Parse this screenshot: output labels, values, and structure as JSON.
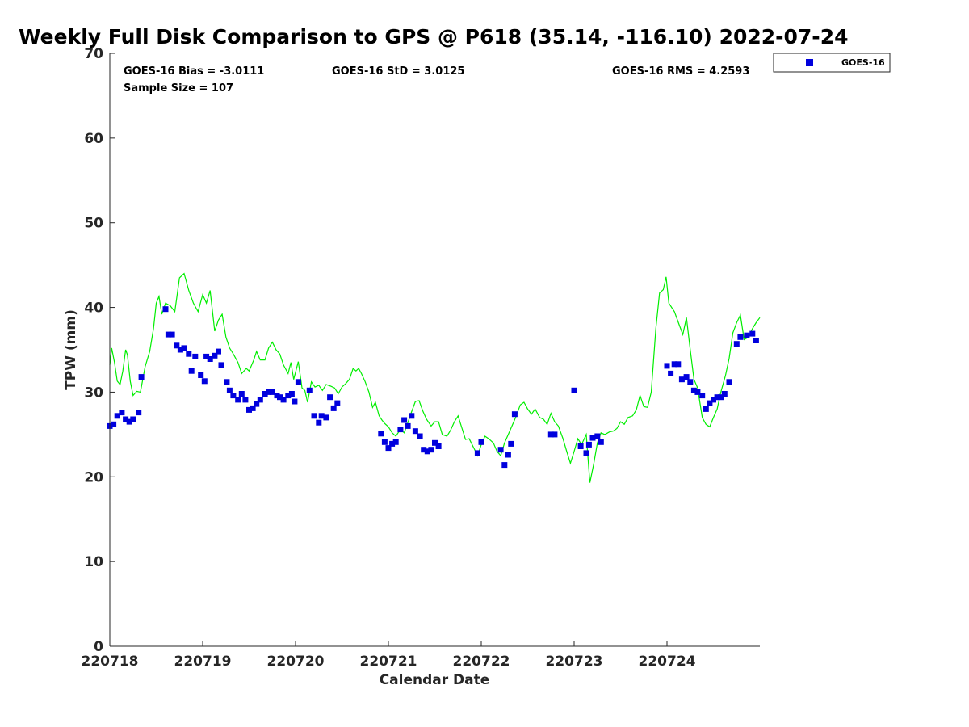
{
  "chart_data": {
    "type": "scatter",
    "title": "Weekly Full Disk Comparison to GPS @ P618 (35.14, -116.10) 2022-07-24",
    "xlabel": "Calendar Date",
    "ylabel": "TPW (mm)",
    "ylim": [
      0,
      70
    ],
    "xlim": [
      0,
      7
    ],
    "yticks": [
      0,
      10,
      20,
      30,
      40,
      50,
      60,
      70
    ],
    "xticks": [
      {
        "value": 0,
        "label": "220718"
      },
      {
        "value": 1,
        "label": "220719"
      },
      {
        "value": 2,
        "label": "220720"
      },
      {
        "value": 3,
        "label": "220721"
      },
      {
        "value": 4,
        "label": "220722"
      },
      {
        "value": 5,
        "label": "220723"
      },
      {
        "value": 6,
        "label": "220724"
      }
    ],
    "annotations": {
      "bias": "GOES-16 Bias = -3.0111",
      "std": "GOES-16 StD = 3.0125",
      "rms": "GOES-16 RMS = 4.2593",
      "sample": "Sample Size = 107"
    },
    "legend": {
      "position": "outside-top-right",
      "entries": [
        "GOES-16"
      ]
    },
    "colors": {
      "goes": "#0000dd",
      "gps": "#00ee00",
      "axis": "#262626"
    },
    "series": [
      {
        "name": "GOES-16",
        "marker": "square",
        "points": [
          [
            0.0,
            26.0
          ],
          [
            0.04,
            26.2
          ],
          [
            0.08,
            27.2
          ],
          [
            0.13,
            27.6
          ],
          [
            0.17,
            26.8
          ],
          [
            0.21,
            26.5
          ],
          [
            0.25,
            26.8
          ],
          [
            0.31,
            27.6
          ],
          [
            0.34,
            31.8
          ],
          [
            0.6,
            39.8
          ],
          [
            0.63,
            36.8
          ],
          [
            0.67,
            36.8
          ],
          [
            0.72,
            35.5
          ],
          [
            0.76,
            35.0
          ],
          [
            0.8,
            35.2
          ],
          [
            0.85,
            34.5
          ],
          [
            0.88,
            32.5
          ],
          [
            0.92,
            34.2
          ],
          [
            0.98,
            32.0
          ],
          [
            1.02,
            31.3
          ],
          [
            1.04,
            34.2
          ],
          [
            1.08,
            33.9
          ],
          [
            1.13,
            34.3
          ],
          [
            1.17,
            34.8
          ],
          [
            1.2,
            33.2
          ],
          [
            1.26,
            31.2
          ],
          [
            1.29,
            30.2
          ],
          [
            1.33,
            29.6
          ],
          [
            1.38,
            29.1
          ],
          [
            1.42,
            29.8
          ],
          [
            1.46,
            29.1
          ],
          [
            1.5,
            27.9
          ],
          [
            1.54,
            28.1
          ],
          [
            1.58,
            28.6
          ],
          [
            1.62,
            29.1
          ],
          [
            1.67,
            29.8
          ],
          [
            1.71,
            30.0
          ],
          [
            1.75,
            30.0
          ],
          [
            1.8,
            29.6
          ],
          [
            1.83,
            29.4
          ],
          [
            1.87,
            29.1
          ],
          [
            1.92,
            29.6
          ],
          [
            1.96,
            29.8
          ],
          [
            1.99,
            28.9
          ],
          [
            2.03,
            31.2
          ],
          [
            2.15,
            30.2
          ],
          [
            2.2,
            27.2
          ],
          [
            2.25,
            26.4
          ],
          [
            2.28,
            27.2
          ],
          [
            2.33,
            27.0
          ],
          [
            2.37,
            29.4
          ],
          [
            2.41,
            28.1
          ],
          [
            2.45,
            28.7
          ],
          [
            2.92,
            25.1
          ],
          [
            2.96,
            24.1
          ],
          [
            3.0,
            23.4
          ],
          [
            3.04,
            23.9
          ],
          [
            3.08,
            24.1
          ],
          [
            3.13,
            25.6
          ],
          [
            3.17,
            26.7
          ],
          [
            3.21,
            26.0
          ],
          [
            3.25,
            27.2
          ],
          [
            3.29,
            25.4
          ],
          [
            3.34,
            24.8
          ],
          [
            3.38,
            23.2
          ],
          [
            3.42,
            23.0
          ],
          [
            3.46,
            23.2
          ],
          [
            3.5,
            24.0
          ],
          [
            3.54,
            23.6
          ],
          [
            3.96,
            22.8
          ],
          [
            4.0,
            24.1
          ],
          [
            4.21,
            23.2
          ],
          [
            4.25,
            21.4
          ],
          [
            4.29,
            22.6
          ],
          [
            4.32,
            23.9
          ],
          [
            4.36,
            27.4
          ],
          [
            4.75,
            25.0
          ],
          [
            4.79,
            25.0
          ],
          [
            5.0,
            30.2
          ],
          [
            5.07,
            23.6
          ],
          [
            5.13,
            22.8
          ],
          [
            5.16,
            23.8
          ],
          [
            5.2,
            24.6
          ],
          [
            5.25,
            24.8
          ],
          [
            5.29,
            24.1
          ],
          [
            6.0,
            33.1
          ],
          [
            6.04,
            32.2
          ],
          [
            6.08,
            33.3
          ],
          [
            6.12,
            33.3
          ],
          [
            6.16,
            31.5
          ],
          [
            6.21,
            31.8
          ],
          [
            6.25,
            31.2
          ],
          [
            6.29,
            30.2
          ],
          [
            6.33,
            30.0
          ],
          [
            6.38,
            29.6
          ],
          [
            6.42,
            28.0
          ],
          [
            6.46,
            28.7
          ],
          [
            6.5,
            29.1
          ],
          [
            6.54,
            29.4
          ],
          [
            6.58,
            29.4
          ],
          [
            6.62,
            29.8
          ],
          [
            6.67,
            31.2
          ],
          [
            6.75,
            35.7
          ],
          [
            6.79,
            36.5
          ],
          [
            6.86,
            36.7
          ],
          [
            6.92,
            36.9
          ],
          [
            6.96,
            36.1
          ]
        ]
      },
      {
        "name": "",
        "marker": "line",
        "points": [
          [
            0.0,
            33.2
          ],
          [
            0.02,
            35.2
          ],
          [
            0.05,
            33.5
          ],
          [
            0.08,
            31.3
          ],
          [
            0.11,
            30.9
          ],
          [
            0.14,
            32.5
          ],
          [
            0.17,
            35.0
          ],
          [
            0.19,
            34.4
          ],
          [
            0.22,
            31.3
          ],
          [
            0.25,
            29.6
          ],
          [
            0.29,
            30.1
          ],
          [
            0.33,
            30.0
          ],
          [
            0.38,
            33.0
          ],
          [
            0.43,
            34.8
          ],
          [
            0.47,
            37.5
          ],
          [
            0.5,
            40.5
          ],
          [
            0.53,
            41.3
          ],
          [
            0.56,
            39.2
          ],
          [
            0.6,
            40.5
          ],
          [
            0.65,
            40.2
          ],
          [
            0.7,
            39.5
          ],
          [
            0.75,
            43.5
          ],
          [
            0.8,
            44.0
          ],
          [
            0.85,
            42.0
          ],
          [
            0.9,
            40.5
          ],
          [
            0.95,
            39.5
          ],
          [
            1.0,
            41.5
          ],
          [
            1.04,
            40.5
          ],
          [
            1.08,
            42.0
          ],
          [
            1.13,
            37.2
          ],
          [
            1.17,
            38.5
          ],
          [
            1.21,
            39.2
          ],
          [
            1.25,
            36.5
          ],
          [
            1.29,
            35.2
          ],
          [
            1.33,
            34.5
          ],
          [
            1.38,
            33.5
          ],
          [
            1.42,
            32.2
          ],
          [
            1.47,
            32.8
          ],
          [
            1.5,
            32.5
          ],
          [
            1.55,
            33.8
          ],
          [
            1.58,
            34.8
          ],
          [
            1.62,
            33.8
          ],
          [
            1.67,
            33.8
          ],
          [
            1.71,
            35.2
          ],
          [
            1.75,
            35.9
          ],
          [
            1.79,
            35.0
          ],
          [
            1.83,
            34.5
          ],
          [
            1.87,
            33.2
          ],
          [
            1.92,
            32.2
          ],
          [
            1.95,
            33.5
          ],
          [
            1.98,
            31.5
          ],
          [
            2.03,
            33.6
          ],
          [
            2.07,
            30.5
          ],
          [
            2.1,
            30.2
          ],
          [
            2.13,
            28.8
          ],
          [
            2.17,
            31.2
          ],
          [
            2.21,
            30.6
          ],
          [
            2.25,
            30.8
          ],
          [
            2.29,
            30.2
          ],
          [
            2.33,
            30.9
          ],
          [
            2.38,
            30.7
          ],
          [
            2.42,
            30.5
          ],
          [
            2.46,
            29.8
          ],
          [
            2.5,
            30.6
          ],
          [
            2.54,
            31.0
          ],
          [
            2.58,
            31.5
          ],
          [
            2.62,
            32.8
          ],
          [
            2.65,
            32.5
          ],
          [
            2.68,
            32.8
          ],
          [
            2.71,
            32.2
          ],
          [
            2.75,
            31.2
          ],
          [
            2.79,
            30.0
          ],
          [
            2.83,
            28.2
          ],
          [
            2.86,
            28.8
          ],
          [
            2.9,
            27.2
          ],
          [
            2.93,
            26.7
          ],
          [
            2.96,
            26.3
          ],
          [
            3.0,
            25.9
          ],
          [
            3.04,
            25.2
          ],
          [
            3.08,
            24.8
          ],
          [
            3.13,
            25.6
          ],
          [
            3.17,
            25.2
          ],
          [
            3.21,
            26.4
          ],
          [
            3.25,
            27.7
          ],
          [
            3.29,
            28.9
          ],
          [
            3.33,
            29.0
          ],
          [
            3.37,
            27.8
          ],
          [
            3.41,
            26.8
          ],
          [
            3.46,
            26.0
          ],
          [
            3.5,
            26.5
          ],
          [
            3.54,
            26.5
          ],
          [
            3.58,
            25.0
          ],
          [
            3.63,
            24.8
          ],
          [
            3.67,
            25.5
          ],
          [
            3.71,
            26.5
          ],
          [
            3.75,
            27.2
          ],
          [
            3.79,
            25.8
          ],
          [
            3.83,
            24.4
          ],
          [
            3.87,
            24.5
          ],
          [
            3.92,
            23.4
          ],
          [
            3.96,
            22.5
          ],
          [
            4.0,
            23.8
          ],
          [
            4.04,
            24.8
          ],
          [
            4.08,
            24.5
          ],
          [
            4.13,
            24.0
          ],
          [
            4.17,
            23.0
          ],
          [
            4.21,
            22.5
          ],
          [
            4.25,
            24.0
          ],
          [
            4.29,
            25.0
          ],
          [
            4.33,
            26.0
          ],
          [
            4.37,
            27.0
          ],
          [
            4.42,
            28.5
          ],
          [
            4.46,
            28.8
          ],
          [
            4.5,
            28.0
          ],
          [
            4.54,
            27.4
          ],
          [
            4.58,
            28.0
          ],
          [
            4.63,
            27.0
          ],
          [
            4.67,
            26.8
          ],
          [
            4.71,
            26.2
          ],
          [
            4.75,
            27.5
          ],
          [
            4.79,
            26.5
          ],
          [
            4.83,
            26.0
          ],
          [
            4.88,
            24.5
          ],
          [
            4.92,
            23.0
          ],
          [
            4.96,
            21.6
          ],
          [
            5.0,
            23.0
          ],
          [
            5.04,
            24.5
          ],
          [
            5.08,
            23.8
          ],
          [
            5.13,
            25.0
          ],
          [
            5.17,
            19.3
          ],
          [
            5.21,
            21.5
          ],
          [
            5.25,
            24.0
          ],
          [
            5.29,
            25.2
          ],
          [
            5.33,
            25.0
          ],
          [
            5.38,
            25.3
          ],
          [
            5.42,
            25.4
          ],
          [
            5.46,
            25.7
          ],
          [
            5.5,
            26.5
          ],
          [
            5.54,
            26.2
          ],
          [
            5.58,
            27.0
          ],
          [
            5.63,
            27.2
          ],
          [
            5.67,
            27.9
          ],
          [
            5.71,
            29.6
          ],
          [
            5.75,
            28.3
          ],
          [
            5.79,
            28.2
          ],
          [
            5.83,
            30.0
          ],
          [
            5.88,
            37.5
          ],
          [
            5.92,
            41.7
          ],
          [
            5.96,
            42.1
          ],
          [
            5.99,
            43.6
          ],
          [
            6.02,
            40.5
          ],
          [
            6.08,
            39.5
          ],
          [
            6.13,
            38.0
          ],
          [
            6.17,
            36.8
          ],
          [
            6.21,
            38.8
          ],
          [
            6.25,
            35.0
          ],
          [
            6.29,
            31.5
          ],
          [
            6.33,
            30.5
          ],
          [
            6.38,
            27.0
          ],
          [
            6.42,
            26.2
          ],
          [
            6.46,
            25.9
          ],
          [
            6.5,
            27.0
          ],
          [
            6.54,
            28.0
          ],
          [
            6.58,
            30.0
          ],
          [
            6.63,
            32.0
          ],
          [
            6.67,
            34.0
          ],
          [
            6.71,
            37.0
          ],
          [
            6.75,
            38.2
          ],
          [
            6.79,
            39.1
          ],
          [
            6.83,
            36.2
          ],
          [
            6.88,
            36.5
          ],
          [
            6.92,
            37.5
          ],
          [
            6.96,
            38.2
          ],
          [
            7.0,
            38.8
          ]
        ]
      }
    ]
  }
}
